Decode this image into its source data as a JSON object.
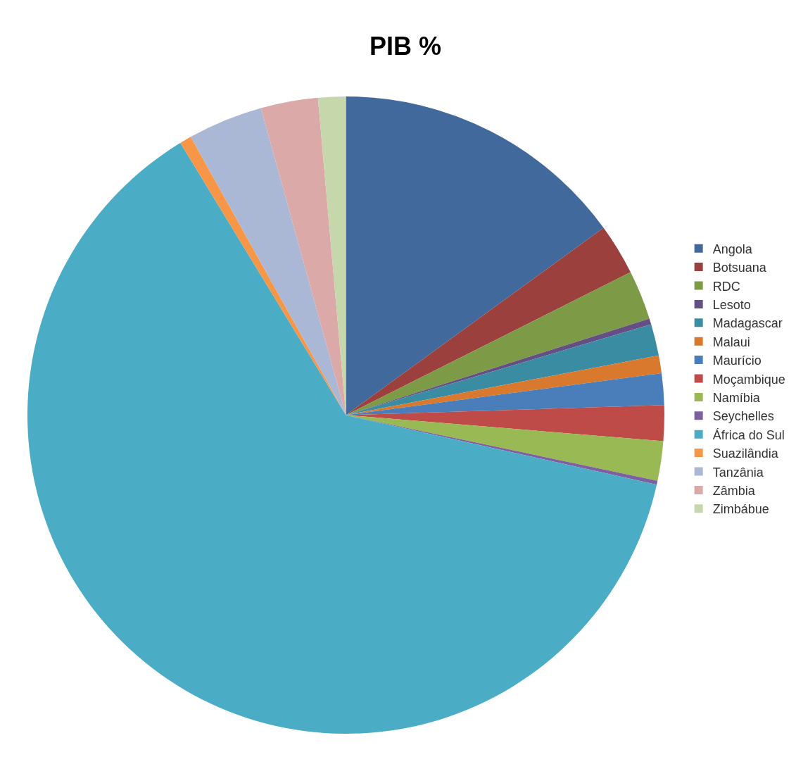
{
  "chart_data": {
    "type": "pie",
    "title": "PIB %",
    "categories": [
      "Angola",
      "Botsuana",
      "RDC",
      "Lesoto",
      "Madagascar",
      "Malaui",
      "Maurício",
      "Moçambique",
      "Namíbia",
      "Seychelles",
      "África do Sul",
      "Suazilândia",
      "Tanzânia",
      "Zâmbia",
      "Zimbábue"
    ],
    "values": [
      15.0,
      2.6,
      2.5,
      0.3,
      1.6,
      0.9,
      1.6,
      1.8,
      2.0,
      0.2,
      62.8,
      0.6,
      3.8,
      2.9,
      1.4
    ],
    "colors": [
      "#41699b",
      "#9c403e",
      "#7d9a46",
      "#644e84",
      "#3a8ca3",
      "#d9792e",
      "#4a7ebb",
      "#be4b48",
      "#98b954",
      "#7d60a0",
      "#4bacc6",
      "#f79646",
      "#aab8d6",
      "#dba9a8",
      "#c6d7ac"
    ],
    "legend": "right"
  }
}
